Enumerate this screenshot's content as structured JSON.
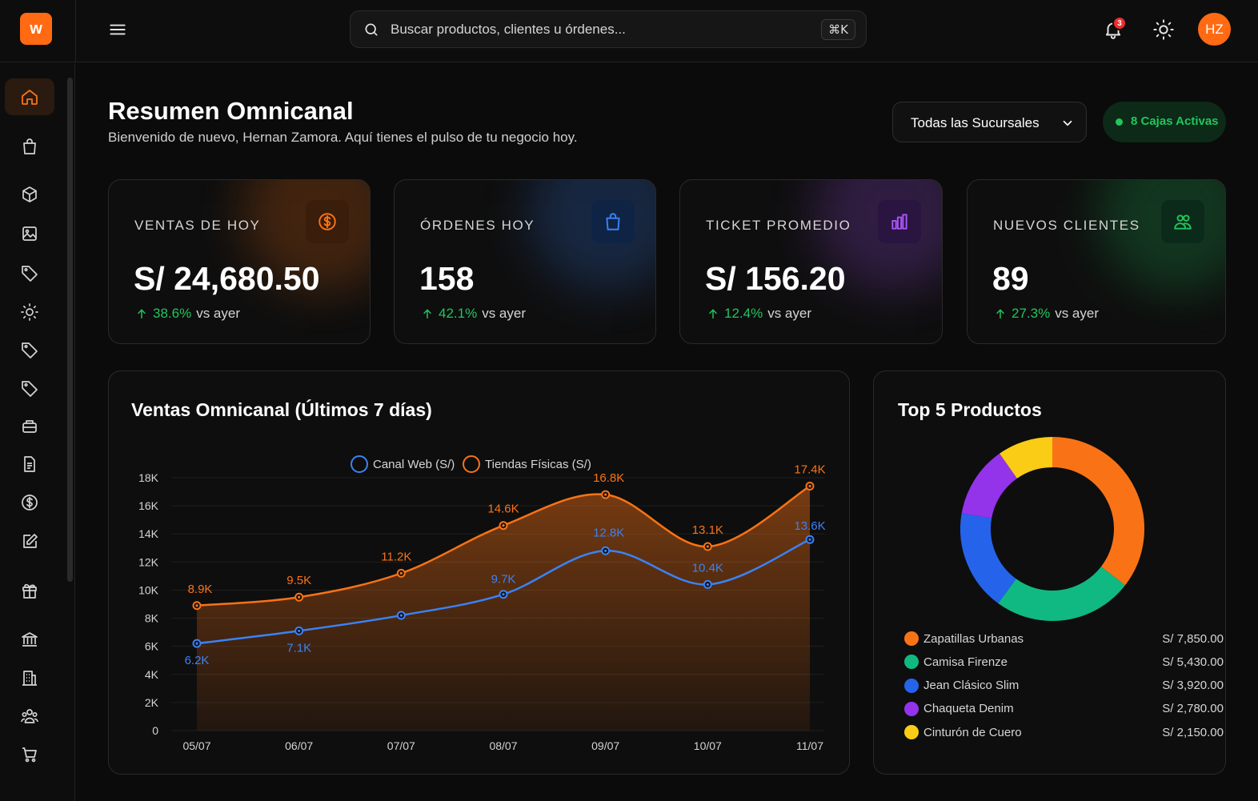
{
  "brand": {
    "logo_letter": "w",
    "accent": "#ff6a13"
  },
  "search": {
    "placeholder": "Buscar productos, clientes u órdenes...",
    "shortcut": "⌘K"
  },
  "header_actions": {
    "notifications_count": "3",
    "avatar_initials": "HZ"
  },
  "sidebar": {
    "items": [
      {
        "icon": "home-icon",
        "active": true
      },
      {
        "icon": "shopping-bag-icon"
      },
      {
        "icon": "cube-icon"
      },
      {
        "icon": "image-icon"
      },
      {
        "icon": "tag-icon"
      },
      {
        "icon": "sun-icon"
      },
      {
        "icon": "tag-icon"
      },
      {
        "icon": "tag-icon"
      },
      {
        "icon": "stack-icon"
      },
      {
        "icon": "document-icon"
      },
      {
        "icon": "dollar-circle-icon"
      },
      {
        "icon": "edit-icon"
      },
      {
        "icon": "gift-icon"
      },
      {
        "icon": "bank-icon"
      },
      {
        "icon": "building-icon"
      },
      {
        "icon": "users-icon"
      },
      {
        "icon": "cart-icon"
      }
    ]
  },
  "page": {
    "title": "Resumen Omnicanal",
    "subtitle": "Bienvenido de nuevo, Hernan Zamora. Aquí tienes el pulso de tu negocio hoy.",
    "branch_select": "Todas las Sucursales",
    "active_registers": "8 Cajas Activas"
  },
  "kpis": [
    {
      "label": "VENTAS DE HOY",
      "value": "S/ 24,680.50",
      "delta": "38.6%",
      "delta_suffix": "vs ayer",
      "icon": "dollar-circle-icon",
      "color": "#f97316"
    },
    {
      "label": "ÓRDENES HOY",
      "value": "158",
      "delta": "42.1%",
      "delta_suffix": "vs ayer",
      "icon": "shopping-bag-icon",
      "color": "#3b82f6"
    },
    {
      "label": "TICKET PROMEDIO",
      "value": "S/ 156.20",
      "delta": "12.4%",
      "delta_suffix": "vs ayer",
      "icon": "bar-chart-icon",
      "color": "#a855f7"
    },
    {
      "label": "NUEVOS CLIENTES",
      "value": "89",
      "delta": "27.3%",
      "delta_suffix": "vs ayer",
      "icon": "users-icon",
      "color": "#22c55e"
    }
  ],
  "sales_chart": {
    "title": "Ventas Omnicanal (Últimos 7 días)"
  },
  "top_products": {
    "title": "Top 5 Productos"
  },
  "chart_data": [
    {
      "type": "line",
      "title": "Ventas Omnicanal (Últimos 7 días)",
      "x": [
        "05/07",
        "06/07",
        "07/07",
        "08/07",
        "09/07",
        "10/07",
        "11/07"
      ],
      "ylim": [
        0,
        18000
      ],
      "yticks": [
        "0",
        "2K",
        "4K",
        "6K",
        "8K",
        "10K",
        "12K",
        "14K",
        "16K",
        "18K"
      ],
      "grid": true,
      "legend": "top",
      "series": [
        {
          "name": "Canal Web (S/)",
          "color": "#3b82f6",
          "values": [
            6200,
            7100,
            8200,
            9700,
            12800,
            10400,
            13600
          ],
          "labels": [
            "6.2K",
            "7.1K",
            "",
            "9.7K",
            "12.8K",
            "10.4K",
            "13.6K"
          ]
        },
        {
          "name": "Tiendas Físicas (S/)",
          "color": "#f97316",
          "values": [
            8900,
            9500,
            11200,
            14600,
            16800,
            13100,
            17400
          ],
          "labels": [
            "8.9K",
            "9.5K",
            "11.2K",
            "14.6K",
            "16.8K",
            "13.1K",
            "17.4K"
          ]
        }
      ]
    },
    {
      "type": "pie",
      "title": "Top 5 Productos",
      "donut": true,
      "categories": [
        "Zapatillas Urbanas",
        "Camisa Firenze",
        "Jean Clásico Slim",
        "Chaqueta Denim",
        "Cinturón de Cuero"
      ],
      "values": [
        7850,
        5430,
        3920,
        2780,
        2150
      ],
      "value_labels": [
        "S/ 7,850.00",
        "S/ 5,430.00",
        "S/ 3,920.00",
        "S/ 2,780.00",
        "S/ 2,150.00"
      ],
      "colors": [
        "#f97316",
        "#10b981",
        "#2563eb",
        "#9333ea",
        "#facc15"
      ],
      "legend": "bottom"
    }
  ]
}
